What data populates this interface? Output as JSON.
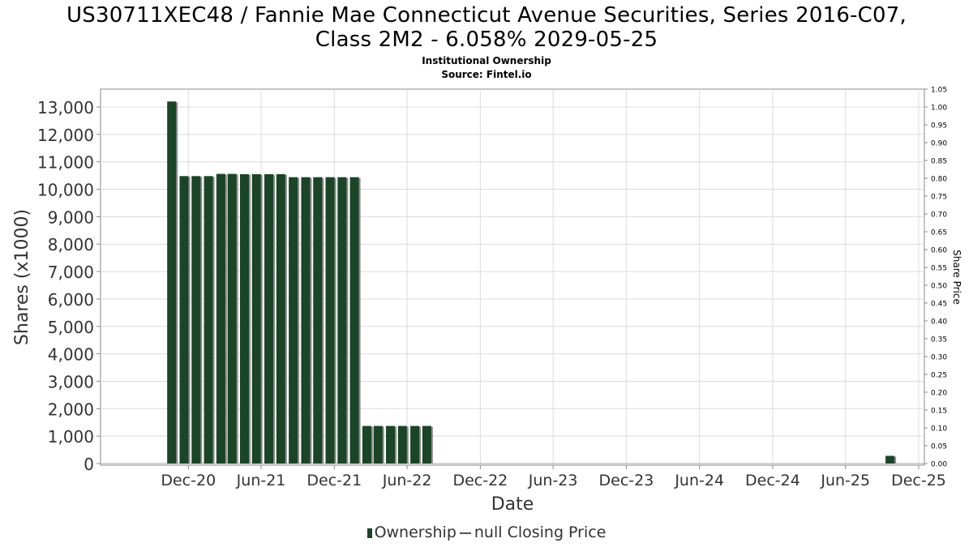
{
  "title_line1": "US30711XEC48 / Fannie Mae Connecticut Avenue Securities, Series 2016-C07,",
  "title_line2": "Class 2M2 - 6.058% 2029-05-25",
  "subtitle_line1": "Institutional Ownership",
  "subtitle_line2": "Source: Fintel.io",
  "colors": {
    "bar": "#1a4526",
    "bar_shadow": "#8c8c8c",
    "grid": "#dcdcdc",
    "axis": "#888888",
    "plot_border": "#888888"
  },
  "chart_data": {
    "type": "bar",
    "xlabel": "Date",
    "ylabel": "Shares (x1000)",
    "y2label": "Share Price",
    "ylim": [
      0,
      13900
    ],
    "y_ticks": [
      "0",
      "1,000",
      "2,000",
      "3,000",
      "4,000",
      "5,000",
      "6,000",
      "7,000",
      "8,000",
      "9,000",
      "10,000",
      "11,000",
      "12,000",
      "13,000"
    ],
    "y_tick_values": [
      0,
      1000,
      2000,
      3000,
      4000,
      5000,
      6000,
      7000,
      8000,
      9000,
      10000,
      11000,
      12000,
      13000
    ],
    "y2lim": [
      0,
      1.05
    ],
    "y2_ticks": [
      "0.00",
      "0.05",
      "0.10",
      "0.15",
      "0.20",
      "0.25",
      "0.30",
      "0.35",
      "0.40",
      "0.45",
      "0.50",
      "0.55",
      "0.60",
      "0.65",
      "0.70",
      "0.75",
      "0.80",
      "0.85",
      "0.90",
      "0.95",
      "1.00",
      "1.05"
    ],
    "x_ticks": [
      "Dec-20",
      "Jun-21",
      "Dec-21",
      "Jun-22",
      "Dec-22",
      "Jun-23",
      "Dec-23",
      "Jun-24",
      "Dec-24",
      "Jun-25",
      "Dec-25"
    ],
    "x_tick_dates": [
      "2020-12-01",
      "2021-06-01",
      "2021-12-01",
      "2022-06-01",
      "2022-12-01",
      "2023-06-01",
      "2023-12-01",
      "2024-06-01",
      "2024-12-01",
      "2025-06-01",
      "2025-12-01"
    ],
    "x_range": [
      "2020-06-01",
      "2025-12-01"
    ],
    "grid": true,
    "legend_position": "bottom",
    "series": [
      {
        "name": "Ownership",
        "points": [
          {
            "date": "2020-10-01",
            "value": 13200
          },
          {
            "date": "2020-11-01",
            "value": 10480
          },
          {
            "date": "2020-12-01",
            "value": 10480
          },
          {
            "date": "2021-01-01",
            "value": 10480
          },
          {
            "date": "2021-02-01",
            "value": 10560
          },
          {
            "date": "2021-03-01",
            "value": 10560
          },
          {
            "date": "2021-04-01",
            "value": 10550
          },
          {
            "date": "2021-05-01",
            "value": 10550
          },
          {
            "date": "2021-06-01",
            "value": 10550
          },
          {
            "date": "2021-07-01",
            "value": 10550
          },
          {
            "date": "2021-08-01",
            "value": 10440
          },
          {
            "date": "2021-09-01",
            "value": 10440
          },
          {
            "date": "2021-10-01",
            "value": 10440
          },
          {
            "date": "2021-11-01",
            "value": 10440
          },
          {
            "date": "2021-12-01",
            "value": 10440
          },
          {
            "date": "2022-01-01",
            "value": 10440
          },
          {
            "date": "2022-02-01",
            "value": 1370
          },
          {
            "date": "2022-03-01",
            "value": 1370
          },
          {
            "date": "2022-04-01",
            "value": 1370
          },
          {
            "date": "2022-05-01",
            "value": 1370
          },
          {
            "date": "2022-06-01",
            "value": 1370
          },
          {
            "date": "2022-07-01",
            "value": 1370
          },
          {
            "date": "2025-09-01",
            "value": 280
          }
        ]
      }
    ],
    "legend": [
      {
        "label": "Ownership",
        "kind": "bar"
      },
      {
        "label": "null Closing Price",
        "kind": "line"
      }
    ]
  }
}
